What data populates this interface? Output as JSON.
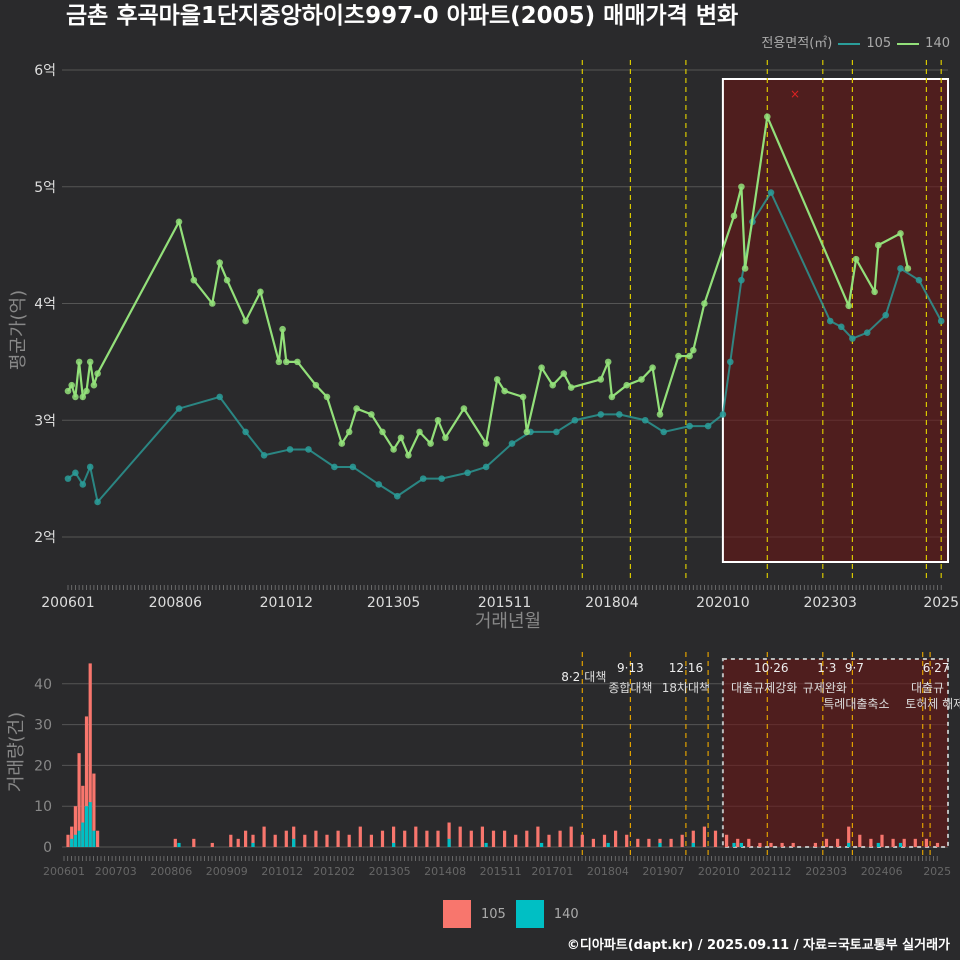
{
  "title": "금촌 후곡마을1단지중앙하이츠997-0 아파트(2005) 매매가격 변화",
  "legend_top": {
    "title": "전용면적(㎡)",
    "items": [
      {
        "label": "105",
        "color": "#2a9d9a"
      },
      {
        "label": "140",
        "color": "#93e07a"
      }
    ]
  },
  "legend_bottom": {
    "items": [
      {
        "label": "105",
        "color": "#f8766d"
      },
      {
        "label": "140",
        "color": "#00bfc4"
      }
    ]
  },
  "footer": "©디아파트(dapt.kr) / 2025.09.11 / 자료=국토교통부 실거래가",
  "chart_data": [
    {
      "type": "line",
      "title": "금촌 후곡마을1단지중앙하이츠997-0 아파트(2005) 매매가격 변화",
      "xlabel": "거래년월",
      "ylabel": "평균가(억)",
      "ylim": [
        1.6,
        6.1
      ],
      "yticks": [
        {
          "v": 2,
          "label": "2억"
        },
        {
          "v": 3,
          "label": "3억"
        },
        {
          "v": 4,
          "label": "4억"
        },
        {
          "v": 5,
          "label": "5억"
        },
        {
          "v": 6,
          "label": "6억"
        }
      ],
      "xticks": [
        {
          "m": "200601",
          "label": "200601"
        },
        {
          "m": "200806",
          "label": "200806"
        },
        {
          "m": "201012",
          "label": "201012"
        },
        {
          "m": "201305",
          "label": "201305"
        },
        {
          "m": "201511",
          "label": "201511"
        },
        {
          "m": "201804",
          "label": "201804"
        },
        {
          "m": "202010",
          "label": "202010"
        },
        {
          "m": "202303",
          "label": "202303"
        },
        {
          "m": "202509",
          "label": "2025"
        }
      ],
      "series": [
        {
          "name": "140",
          "color": "#93e07a",
          "points": [
            [
              "200601",
              3.25
            ],
            [
              "200602",
              3.3
            ],
            [
              "200603",
              3.2
            ],
            [
              "200604",
              3.5
            ],
            [
              "200605",
              3.2
            ],
            [
              "200606",
              3.25
            ],
            [
              "200607",
              3.5
            ],
            [
              "200608",
              3.3
            ],
            [
              "200609",
              3.4
            ],
            [
              "200807",
              4.7
            ],
            [
              "200811",
              4.2
            ],
            [
              "200904",
              4.0
            ],
            [
              "200906",
              4.35
            ],
            [
              "200908",
              4.2
            ],
            [
              "201001",
              3.85
            ],
            [
              "201005",
              4.1
            ],
            [
              "201010",
              3.5
            ],
            [
              "201011",
              3.78
            ],
            [
              "201012",
              3.5
            ],
            [
              "201103",
              3.5
            ],
            [
              "201108",
              3.3
            ],
            [
              "201111",
              3.2
            ],
            [
              "201203",
              2.8
            ],
            [
              "201205",
              2.9
            ],
            [
              "201207",
              3.1
            ],
            [
              "201211",
              3.05
            ],
            [
              "201302",
              2.9
            ],
            [
              "201305",
              2.75
            ],
            [
              "201307",
              2.85
            ],
            [
              "201309",
              2.7
            ],
            [
              "201312",
              2.9
            ],
            [
              "201403",
              2.8
            ],
            [
              "201405",
              3.0
            ],
            [
              "201407",
              2.85
            ],
            [
              "201412",
              3.1
            ],
            [
              "201506",
              2.8
            ],
            [
              "201509",
              3.35
            ],
            [
              "201511",
              3.25
            ],
            [
              "201604",
              3.2
            ],
            [
              "201605",
              2.9
            ],
            [
              "201609",
              3.45
            ],
            [
              "201612",
              3.3
            ],
            [
              "201703",
              3.4
            ],
            [
              "201705",
              3.28
            ],
            [
              "201801",
              3.35
            ],
            [
              "201803",
              3.5
            ],
            [
              "201804",
              3.2
            ],
            [
              "201808",
              3.3
            ],
            [
              "201812",
              3.35
            ],
            [
              "201903",
              3.45
            ],
            [
              "201905",
              3.05
            ],
            [
              "201910",
              3.55
            ],
            [
              "202001",
              3.55
            ],
            [
              "202002",
              3.6
            ],
            [
              "202005",
              4.0
            ],
            [
              "202101",
              4.75
            ],
            [
              "202103",
              5.0
            ],
            [
              "202104",
              4.3
            ],
            [
              "202110",
              5.6
            ],
            [
              "202308",
              3.98
            ],
            [
              "202310",
              4.38
            ],
            [
              "202403",
              4.1
            ],
            [
              "202404",
              4.5
            ],
            [
              "202410",
              4.6
            ],
            [
              "202412",
              4.3
            ]
          ]
        },
        {
          "name": "105",
          "color": "#2a9d9a",
          "points": [
            [
              "200601",
              2.5
            ],
            [
              "200603",
              2.55
            ],
            [
              "200605",
              2.45
            ],
            [
              "200607",
              2.6
            ],
            [
              "200609",
              2.3
            ],
            [
              "200807",
              3.1
            ],
            [
              "200906",
              3.2
            ],
            [
              "201001",
              2.9
            ],
            [
              "201006",
              2.7
            ],
            [
              "201101",
              2.75
            ],
            [
              "201106",
              2.75
            ],
            [
              "201201",
              2.6
            ],
            [
              "201206",
              2.6
            ],
            [
              "201301",
              2.45
            ],
            [
              "201306",
              2.35
            ],
            [
              "201401",
              2.5
            ],
            [
              "201406",
              2.5
            ],
            [
              "201501",
              2.55
            ],
            [
              "201506",
              2.6
            ],
            [
              "201601",
              2.8
            ],
            [
              "201606",
              2.9
            ],
            [
              "201701",
              2.9
            ],
            [
              "201706",
              3.0
            ],
            [
              "201801",
              3.05
            ],
            [
              "201806",
              3.05
            ],
            [
              "201901",
              3.0
            ],
            [
              "201906",
              2.9
            ],
            [
              "202001",
              2.95
            ],
            [
              "202006",
              2.95
            ],
            [
              "202010",
              3.05
            ],
            [
              "202012",
              3.5
            ],
            [
              "202103",
              4.2
            ],
            [
              "202106",
              4.7
            ],
            [
              "202111",
              4.95
            ],
            [
              "202303",
              3.85
            ],
            [
              "202306",
              3.8
            ],
            [
              "202309",
              3.7
            ],
            [
              "202401",
              3.75
            ],
            [
              "202406",
              3.9
            ],
            [
              "202410",
              4.3
            ],
            [
              "202503",
              4.2
            ],
            [
              "202509",
              3.85
            ]
          ]
        }
      ],
      "highlight": {
        "from": "202010",
        "to": "202509"
      },
      "events": [
        "201708",
        "201809",
        "201912",
        "202110",
        "202301",
        "202309",
        "202505",
        "202509"
      ]
    },
    {
      "type": "bar",
      "xlabel": "",
      "ylabel": "거래량(건)",
      "ylim": [
        0,
        46
      ],
      "yticks": [
        0,
        10,
        20,
        30,
        40
      ],
      "xticks": [
        "200601",
        "200703",
        "200806",
        "200909",
        "201012",
        "201202",
        "201305",
        "201408",
        "201511",
        "201701",
        "201804",
        "201907",
        "202010",
        "202112",
        "202303",
        "202406",
        "2025"
      ],
      "events": [
        {
          "m": "201708",
          "date": "8·2",
          "label": "대책"
        },
        {
          "m": "201809",
          "date": "9·13",
          "label": "종합대책"
        },
        {
          "m": "201912",
          "date": "12·16",
          "label": "18차대책"
        },
        {
          "m": "202006",
          "date": "",
          "label": ""
        },
        {
          "m": "202110",
          "date": "10·26",
          "label": "대출규제강화"
        },
        {
          "m": "202301",
          "date": "1·3",
          "label": "규제완화"
        },
        {
          "m": "202309",
          "date": "9·7",
          "label": "특례대출축소"
        },
        {
          "m": "202504",
          "date": "",
          "label": "토허제 해제"
        },
        {
          "m": "202506",
          "date": "6·27",
          "label": "대출규"
        }
      ],
      "series": [
        {
          "name": "105",
          "color": "#f8766d",
          "values": {
            "200601": 3,
            "200602": 5,
            "200603": 10,
            "200604": 23,
            "200605": 15,
            "200606": 32,
            "200607": 45,
            "200608": 18,
            "200609": 4,
            "200806": 2,
            "200811": 2,
            "200904": 1,
            "200909": 3,
            "200911": 2,
            "201001": 4,
            "201003": 3,
            "201006": 5,
            "201009": 3,
            "201012": 4,
            "201102": 5,
            "201105": 3,
            "201108": 4,
            "201111": 3,
            "201202": 4,
            "201205": 3,
            "201208": 5,
            "201211": 3,
            "201302": 4,
            "201305": 5,
            "201308": 4,
            "201311": 5,
            "201402": 4,
            "201405": 4,
            "201408": 6,
            "201411": 5,
            "201502": 4,
            "201505": 5,
            "201508": 4,
            "201511": 4,
            "201602": 3,
            "201605": 4,
            "201608": 5,
            "201611": 3,
            "201702": 4,
            "201705": 5,
            "201708": 3,
            "201711": 2,
            "201802": 3,
            "201805": 4,
            "201808": 3,
            "201811": 2,
            "201902": 2,
            "201905": 2,
            "201908": 2,
            "201911": 3,
            "202002": 4,
            "202005": 5,
            "202008": 4,
            "202011": 3,
            "202102": 2,
            "202105": 2,
            "202108": 1,
            "202111": 1,
            "202202": 1,
            "202205": 1,
            "202211": 1,
            "202302": 2,
            "202305": 2,
            "202308": 5,
            "202311": 3,
            "202402": 2,
            "202405": 3,
            "202408": 2,
            "202411": 2,
            "202502": 2,
            "202505": 2,
            "202508": 1
          },
          "total": true
        },
        {
          "name": "140",
          "color": "#00bfc4",
          "values": {
            "200602": 2,
            "200603": 3,
            "200604": 4,
            "200605": 6,
            "200606": 10,
            "200607": 11,
            "200608": 4,
            "200807": 1,
            "201003": 1,
            "201102": 2,
            "201305": 1,
            "201408": 2,
            "201506": 1,
            "201609": 1,
            "201803": 1,
            "201905": 1,
            "202002": 1,
            "202101": 1,
            "202103": 1,
            "202308": 1,
            "202404": 1,
            "202410": 1
          }
        }
      ]
    }
  ]
}
